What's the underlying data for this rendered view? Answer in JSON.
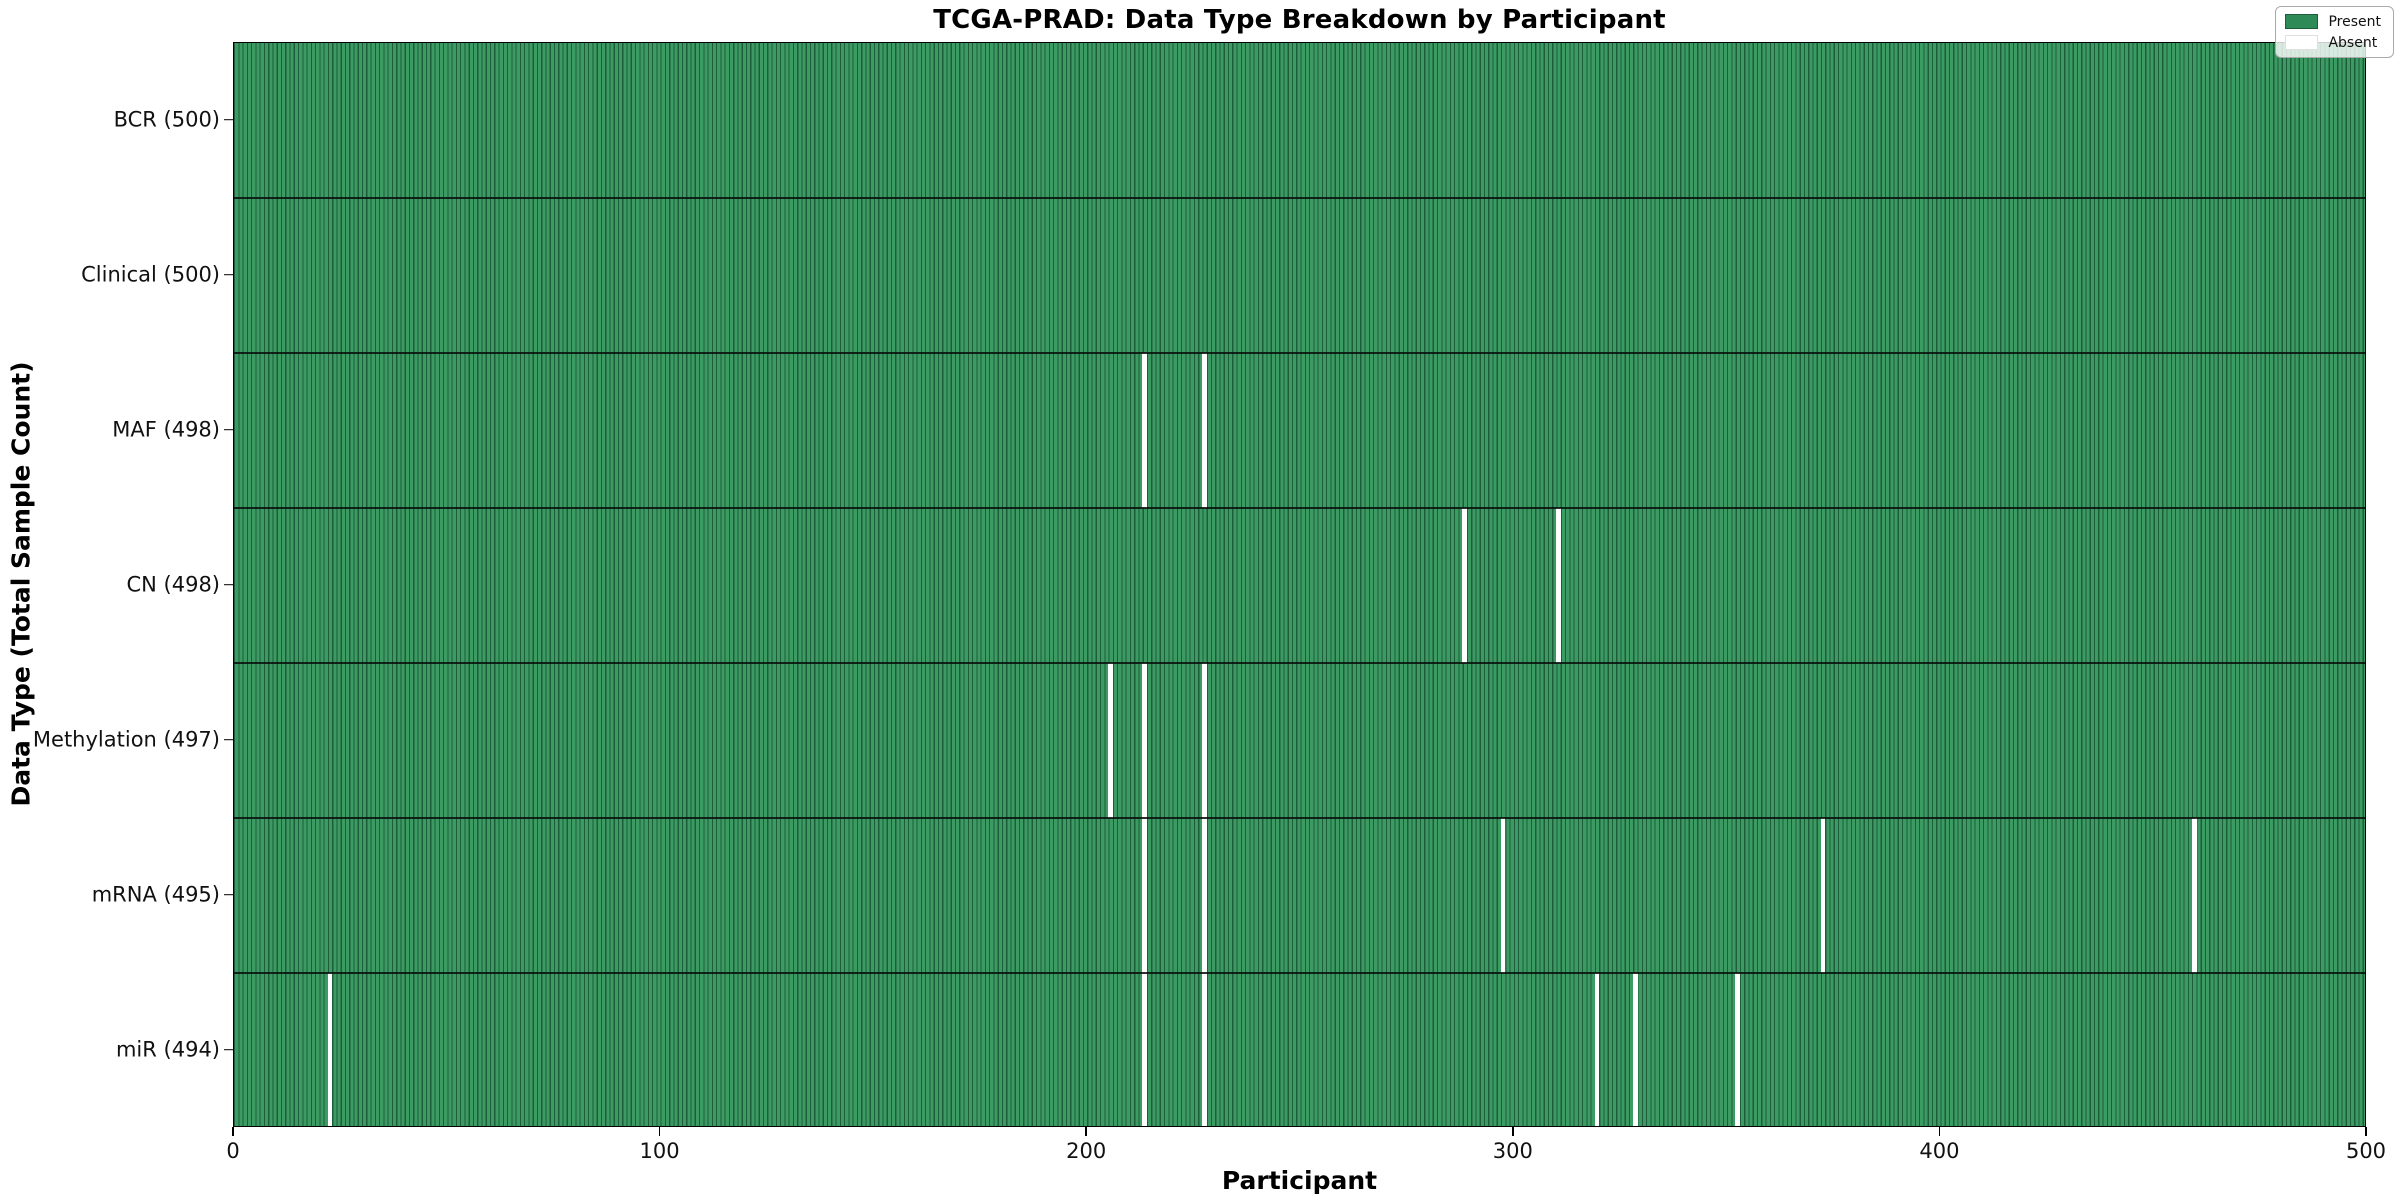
{
  "chart_data": {
    "type": "heatmap",
    "title": "TCGA-PRAD: Data Type Breakdown by Participant",
    "xlabel": "Participant",
    "ylabel": "Data Type (Total Sample Count)",
    "xlim": [
      0,
      500
    ],
    "x_ticks": [
      0,
      100,
      200,
      300,
      400,
      500
    ],
    "n_participants": 500,
    "grid": false,
    "legend": {
      "position": "upper right",
      "entries": [
        {
          "label": "Present",
          "color": "#2e8b57",
          "edge": "#1e5d3b"
        },
        {
          "label": "Absent",
          "color": "#ffffff",
          "edge": "#e0e0e0"
        }
      ]
    },
    "colors": {
      "present_fill": "#3c9a63",
      "bar_edge": "#1e5d3b",
      "absent": "#ffffff",
      "row_separator": "#0a0f0a",
      "spine": "#000000"
    },
    "rows": [
      {
        "name": "bcr",
        "label": "BCR (500)",
        "total": 500,
        "absent_participants": []
      },
      {
        "name": "clinical",
        "label": "Clinical (500)",
        "total": 500,
        "absent_participants": []
      },
      {
        "name": "maf",
        "label": "MAF (498)",
        "total": 498,
        "absent_participants": [
          213,
          227
        ]
      },
      {
        "name": "cn",
        "label": "CN (498)",
        "total": 498,
        "absent_participants": [
          288,
          310
        ]
      },
      {
        "name": "methylation",
        "label": "Methylation (497)",
        "total": 497,
        "absent_participants": [
          205,
          213,
          227
        ]
      },
      {
        "name": "mrna",
        "label": "mRNA (495)",
        "total": 495,
        "absent_participants": [
          213,
          227,
          297,
          372,
          459
        ]
      },
      {
        "name": "mir",
        "label": "miR (494)",
        "total": 494,
        "absent_participants": [
          22,
          213,
          227,
          319,
          328,
          352
        ]
      }
    ]
  }
}
